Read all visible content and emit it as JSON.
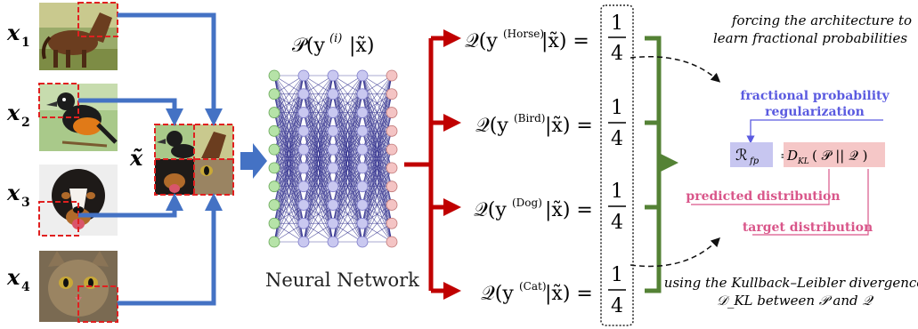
{
  "inputs": [
    {
      "label": "x",
      "sub": "1",
      "animal": "horse"
    },
    {
      "label": "x",
      "sub": "2",
      "animal": "bird"
    },
    {
      "label": "x",
      "sub": "3",
      "animal": "dog"
    },
    {
      "label": "x",
      "sub": "4",
      "animal": "cat"
    }
  ],
  "mix_label": "x̃",
  "network": {
    "title_prefix": "𝒫(y",
    "title_sup": "(i)",
    "title_suffix": "|x̃)",
    "caption": "Neural Network",
    "layers": [
      10,
      10,
      10,
      10,
      10
    ]
  },
  "outputs": [
    {
      "prefix": "𝒬(y",
      "class": "(Horse)",
      "suffix": "|x̃) =",
      "num": "1",
      "den": "4"
    },
    {
      "prefix": "𝒬(y",
      "class": "(Bird)",
      "suffix": "|x̃) =",
      "num": "1",
      "den": "4"
    },
    {
      "prefix": "𝒬(y",
      "class": "(Dog)",
      "suffix": "|x̃) =",
      "num": "1",
      "den": "4"
    },
    {
      "prefix": "𝒬(y",
      "class": "(Cat)",
      "suffix": "|x̃) =",
      "num": "1",
      "den": "4"
    }
  ],
  "notes": {
    "top_line1": "forcing the architecture to",
    "top_line2": "learn fractional probabilities",
    "bottom_line1": "using the Kullback–Leibler divergence",
    "bottom_line2": "𝒟_KL between 𝒫 and 𝒬"
  },
  "reg": {
    "title_line1": "fractional probability",
    "title_line2": "regularization",
    "symbol": "ℛ",
    "symbol_sub": "fp",
    "equals": "=",
    "dkl": "D",
    "dkl_sub": "KL",
    "dkl_args": "( 𝒫  ||  𝒬 )",
    "predicted": "predicted distribution",
    "target": "target distribution"
  },
  "colors": {
    "blue_arrow": "#4472C4",
    "red_arrow": "#C00000",
    "green_bracket": "#548235",
    "reg_title": "#5B5BE0",
    "pink_label": "#D9568A",
    "node_green": "#B6E3A8",
    "node_purple": "#C9C8F0",
    "node_pink": "#F4C4C4",
    "reg_box": "#C7C6F0",
    "dkl_box": "#F5C7C7"
  }
}
